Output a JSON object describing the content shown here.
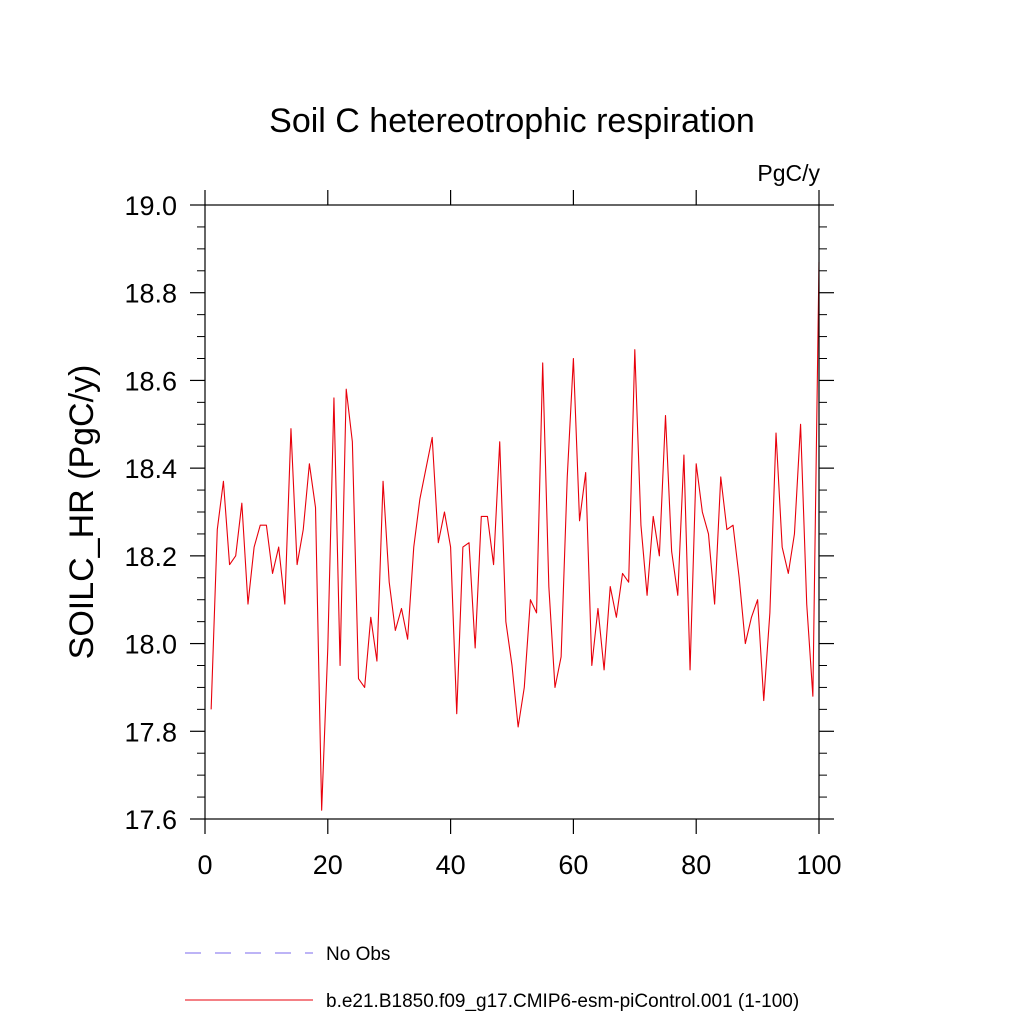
{
  "chart_data": {
    "type": "line",
    "title": "Soil C hetereotrophic respiration",
    "units": "PgC/y",
    "ylabel": "SOILC_HR  (PgC/y)",
    "xlabel": "",
    "xlim": [
      0,
      100
    ],
    "ylim": [
      17.6,
      19.0
    ],
    "x_ticks": [
      0,
      20,
      40,
      60,
      80,
      100
    ],
    "x_tick_labels": [
      "0",
      "20",
      "40",
      "60",
      "80",
      "100"
    ],
    "y_ticks": [
      17.6,
      17.8,
      18.0,
      18.2,
      18.4,
      18.6,
      18.8,
      19.0
    ],
    "y_tick_labels": [
      "17.6",
      "17.8",
      "18.0",
      "18.2",
      "18.4",
      "18.6",
      "18.8",
      "19.0"
    ],
    "grid": false,
    "legend_placement": "below",
    "series": [
      {
        "name": "No Obs",
        "color": "#7b68ee",
        "dash": "dashed",
        "x": [],
        "values": []
      },
      {
        "name": "b.e21.B1850.f09_g17.CMIP6-esm-piControl.001 (1-100)",
        "color": "#e8000b",
        "dash": "solid",
        "x": [
          1,
          2,
          3,
          4,
          5,
          6,
          7,
          8,
          9,
          10,
          11,
          12,
          13,
          14,
          15,
          16,
          17,
          18,
          19,
          20,
          21,
          22,
          23,
          24,
          25,
          26,
          27,
          28,
          29,
          30,
          31,
          32,
          33,
          34,
          35,
          36,
          37,
          38,
          39,
          40,
          41,
          42,
          43,
          44,
          45,
          46,
          47,
          48,
          49,
          50,
          51,
          52,
          53,
          54,
          55,
          56,
          57,
          58,
          59,
          60,
          61,
          62,
          63,
          64,
          65,
          66,
          67,
          68,
          69,
          70,
          71,
          72,
          73,
          74,
          75,
          76,
          77,
          78,
          79,
          80,
          81,
          82,
          83,
          84,
          85,
          86,
          87,
          88,
          89,
          90,
          91,
          92,
          93,
          94,
          95,
          96,
          97,
          98,
          99,
          100
        ],
        "values": [
          17.85,
          18.26,
          18.37,
          18.18,
          18.2,
          18.32,
          18.09,
          18.22,
          18.27,
          18.27,
          18.16,
          18.22,
          18.09,
          18.49,
          18.18,
          18.26,
          18.41,
          18.31,
          17.62,
          17.99,
          18.56,
          17.95,
          18.58,
          18.46,
          17.92,
          17.9,
          18.06,
          17.96,
          18.37,
          18.14,
          18.03,
          18.08,
          18.01,
          18.22,
          18.33,
          18.4,
          18.47,
          18.23,
          18.3,
          18.22,
          17.84,
          18.22,
          18.23,
          17.99,
          18.29,
          18.29,
          18.18,
          18.46,
          18.05,
          17.95,
          17.81,
          17.9,
          18.1,
          18.07,
          18.64,
          18.13,
          17.9,
          17.97,
          18.38,
          18.65,
          18.28,
          18.39,
          17.95,
          18.08,
          17.94,
          18.13,
          18.06,
          18.16,
          18.14,
          18.67,
          18.27,
          18.11,
          18.29,
          18.2,
          18.52,
          18.21,
          18.11,
          18.43,
          17.94,
          18.41,
          18.3,
          18.25,
          18.09,
          18.38,
          18.26,
          18.27,
          18.15,
          18.0,
          18.06,
          18.1,
          17.87,
          18.07,
          18.48,
          18.22,
          18.16,
          18.25,
          18.5,
          18.09,
          17.88,
          18.87
        ]
      }
    ]
  }
}
